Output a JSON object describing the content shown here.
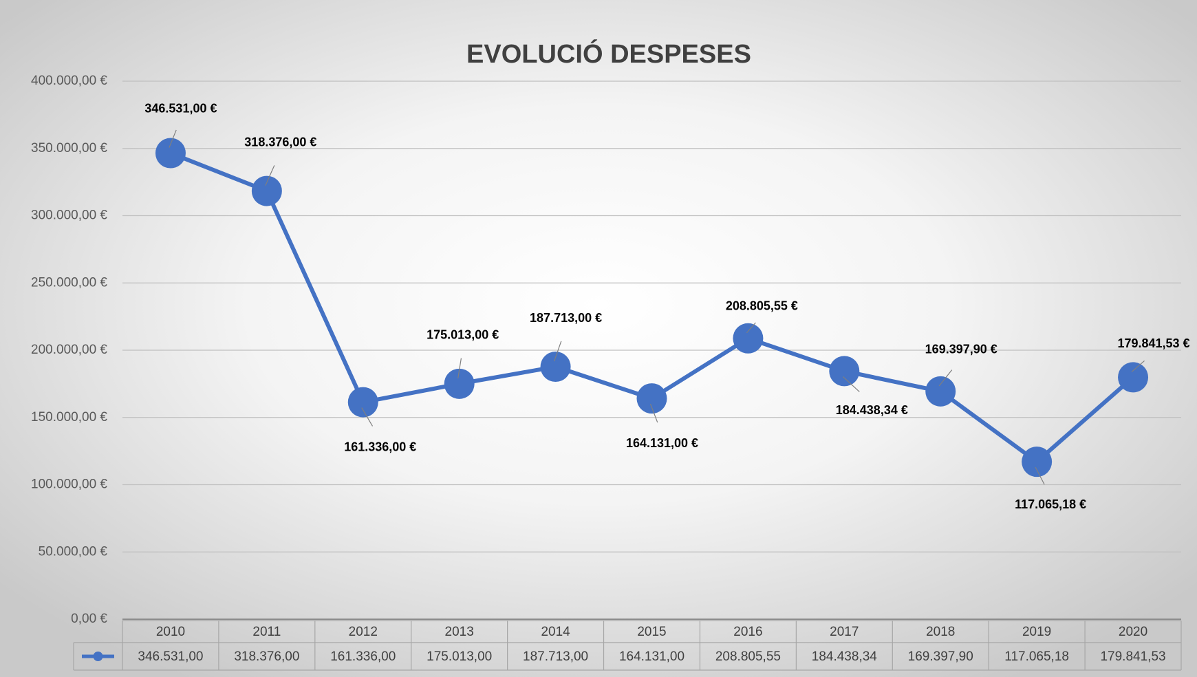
{
  "chart_data": {
    "type": "line",
    "title": "EVOLUCIÓ DESPESES",
    "categories": [
      "2010",
      "2011",
      "2012",
      "2013",
      "2014",
      "2015",
      "2016",
      "2017",
      "2018",
      "2019",
      "2020"
    ],
    "series": [
      {
        "color": "#4472c4",
        "values": [
          346531,
          318376,
          161336,
          175013,
          187713,
          164131,
          208805.55,
          184438.34,
          169397.9,
          117065.18,
          179841.53
        ],
        "value_labels": [
          "346.531,00 €",
          "318.376,00 €",
          "161.336,00 €",
          "175.013,00 €",
          "187.713,00 €",
          "164.131,00 €",
          "208.805,55 €",
          "184.438,34 €",
          "169.397,90 €",
          "117.065,18 €",
          "179.841,53 €"
        ],
        "table_labels": [
          "346.531,00",
          "318.376,00",
          "161.336,00",
          "175.013,00",
          "187.713,00",
          "164.131,00",
          "208.805,55",
          "184.438,34",
          "169.397,90",
          "117.065,18",
          "179.841,53"
        ]
      }
    ],
    "ylim": [
      0,
      400000
    ],
    "yticks": [
      {
        "value": 0,
        "label": "0,00 €"
      },
      {
        "value": 50000,
        "label": "50.000,00 €"
      },
      {
        "value": 100000,
        "label": "100.000,00 €"
      },
      {
        "value": 150000,
        "label": "150.000,00 €"
      },
      {
        "value": 200000,
        "label": "200.000,00 €"
      },
      {
        "value": 250000,
        "label": "250.000,00 €"
      },
      {
        "value": 300000,
        "label": "300.000,00 €"
      },
      {
        "value": 350000,
        "label": "350.000,00 €"
      },
      {
        "value": 400000,
        "label": "400.000,00 €"
      }
    ],
    "grid": true
  }
}
